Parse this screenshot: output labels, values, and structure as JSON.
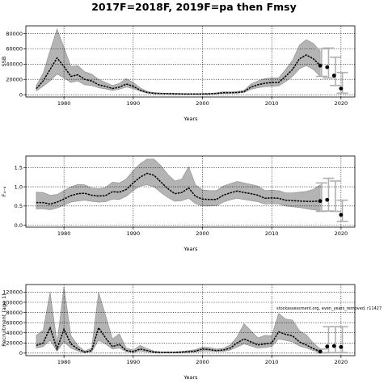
{
  "title": "2017F=2018F, 2019F=pa then Fmsy",
  "chart_data": [
    {
      "type": "line",
      "ylabel": "SSB",
      "xlabel": "Years",
      "xlim": [
        1974.5,
        2022
      ],
      "ylim": [
        -3000,
        90000
      ],
      "xticks": [
        1980,
        1990,
        2000,
        2010,
        2020
      ],
      "yticks": [
        0,
        20000,
        40000,
        60000,
        80000
      ],
      "grid": true,
      "x": [
        1976,
        1977,
        1978,
        1979,
        1980,
        1981,
        1982,
        1983,
        1984,
        1985,
        1986,
        1987,
        1988,
        1989,
        1990,
        1991,
        1992,
        1993,
        1994,
        1995,
        1996,
        1997,
        1998,
        1999,
        2000,
        2001,
        2002,
        2003,
        2004,
        2005,
        2006,
        2007,
        2008,
        2009,
        2010,
        2011,
        2012,
        2013,
        2014,
        2015,
        2016,
        2017
      ],
      "values": [
        8000,
        18000,
        33000,
        48000,
        37000,
        24000,
        26000,
        20000,
        18000,
        13000,
        11000,
        8000,
        10000,
        14000,
        11000,
        6000,
        3000,
        1800,
        1500,
        1400,
        1200,
        1000,
        900,
        900,
        1000,
        1200,
        1600,
        2500,
        2500,
        2800,
        4000,
        10000,
        13000,
        15000,
        16000,
        16000,
        24000,
        33000,
        47000,
        52000,
        47000,
        38000
      ],
      "lower": [
        5000,
        11000,
        18000,
        27000,
        22000,
        16000,
        18000,
        13000,
        12000,
        9000,
        7500,
        5500,
        7000,
        10000,
        8000,
        4500,
        2000,
        1200,
        1000,
        900,
        800,
        700,
        600,
        600,
        700,
        800,
        1100,
        1700,
        1800,
        2000,
        2800,
        7000,
        9000,
        10500,
        11000,
        11500,
        17000,
        24000,
        34000,
        38000,
        33000,
        24000
      ],
      "upper": [
        12000,
        28000,
        58000,
        86000,
        62000,
        37000,
        38000,
        30000,
        27000,
        20000,
        16000,
        12000,
        15000,
        21000,
        16000,
        9000,
        4500,
        2700,
        2200,
        2100,
        1800,
        1500,
        1300,
        1300,
        1500,
        1800,
        2400,
        3800,
        3700,
        4200,
        5800,
        14000,
        18000,
        21000,
        22000,
        22000,
        33000,
        45000,
        65000,
        72000,
        67000,
        57000
      ],
      "forecast_x": [
        2017,
        2018,
        2019,
        2020
      ],
      "forecast_values": [
        38000,
        36000,
        25000,
        8000
      ],
      "forecast_bars": [
        {
          "x": 2017.2,
          "lower": 24000,
          "upper": 60000
        },
        {
          "x": 2018.2,
          "lower": 22000,
          "upper": 61000
        },
        {
          "x": 2019.2,
          "lower": 12000,
          "upper": 49000
        },
        {
          "x": 2020.2,
          "lower": 2000,
          "upper": 29000
        }
      ]
    },
    {
      "type": "line",
      "ylabel": "F₄₋₈",
      "xlabel": "Years",
      "xlim": [
        1974.5,
        2022
      ],
      "ylim": [
        -0.05,
        1.8
      ],
      "xticks": [
        1980,
        1990,
        2000,
        2010,
        2020
      ],
      "yticks": [
        0.0,
        0.5,
        1.0,
        1.5
      ],
      "grid": true,
      "x": [
        1976,
        1977,
        1978,
        1979,
        1980,
        1981,
        1982,
        1983,
        1984,
        1985,
        1986,
        1987,
        1988,
        1989,
        1990,
        1991,
        1992,
        1993,
        1994,
        1995,
        1996,
        1997,
        1998,
        1999,
        2000,
        2001,
        2002,
        2003,
        2004,
        2005,
        2006,
        2007,
        2008,
        2009,
        2010,
        2011,
        2012,
        2013,
        2014,
        2015,
        2016,
        2017
      ],
      "values": [
        0.59,
        0.59,
        0.55,
        0.6,
        0.68,
        0.77,
        0.82,
        0.83,
        0.78,
        0.76,
        0.77,
        0.87,
        0.86,
        0.93,
        1.1,
        1.25,
        1.35,
        1.3,
        1.12,
        0.95,
        0.82,
        0.85,
        0.97,
        0.75,
        0.68,
        0.67,
        0.67,
        0.78,
        0.84,
        0.89,
        0.85,
        0.82,
        0.78,
        0.7,
        0.71,
        0.7,
        0.65,
        0.64,
        0.63,
        0.62,
        0.62,
        0.63
      ],
      "lower": [
        0.42,
        0.43,
        0.4,
        0.45,
        0.52,
        0.6,
        0.63,
        0.65,
        0.62,
        0.6,
        0.61,
        0.68,
        0.67,
        0.75,
        0.9,
        1.02,
        1.05,
        1.0,
        0.85,
        0.72,
        0.62,
        0.64,
        0.7,
        0.56,
        0.5,
        0.5,
        0.51,
        0.6,
        0.66,
        0.7,
        0.67,
        0.64,
        0.61,
        0.55,
        0.56,
        0.55,
        0.5,
        0.48,
        0.46,
        0.43,
        0.4,
        0.38
      ],
      "upper": [
        0.86,
        0.85,
        0.78,
        0.8,
        0.9,
        1.0,
        1.06,
        1.05,
        0.97,
        0.95,
        0.98,
        1.12,
        1.1,
        1.2,
        1.42,
        1.6,
        1.72,
        1.72,
        1.55,
        1.32,
        1.15,
        1.2,
        1.52,
        1.05,
        0.92,
        0.9,
        0.9,
        1.02,
        1.08,
        1.14,
        1.1,
        1.06,
        1.02,
        0.9,
        0.91,
        0.9,
        0.84,
        0.84,
        0.86,
        0.88,
        0.93,
        1.05
      ],
      "forecast_x": [
        2017,
        2018,
        2019,
        2020
      ],
      "forecast_values": [
        0.63,
        0.66,
        null,
        0.27
      ],
      "forecast_bars": [
        {
          "x": 2017.2,
          "lower": 0.36,
          "upper": 1.1
        },
        {
          "x": 2018.2,
          "lower": 0.37,
          "upper": 1.22
        },
        {
          "x": 2019.2,
          "lower": 0.36,
          "upper": 1.15
        },
        {
          "x": 2020.2,
          "lower": 0.1,
          "upper": 0.65
        }
      ]
    },
    {
      "type": "line",
      "ylabel": "Recruitment (age 1)",
      "xlabel": "Years",
      "xlim": [
        1974.5,
        2022
      ],
      "ylim": [
        -5000,
        135000
      ],
      "xticks": [
        1980,
        1990,
        2000,
        2010,
        2020
      ],
      "yticks": [
        0,
        20000,
        40000,
        60000,
        80000,
        100000,
        120000
      ],
      "grid": true,
      "annotation": "stockassessment.org, even_years_removed, r11427",
      "x": [
        1976,
        1977,
        1978,
        1979,
        1980,
        1981,
        1982,
        1983,
        1984,
        1985,
        1986,
        1987,
        1988,
        1989,
        1990,
        1991,
        1992,
        1993,
        1994,
        1995,
        1996,
        1997,
        1998,
        1999,
        2000,
        2001,
        2002,
        2003,
        2004,
        2005,
        2006,
        2007,
        2008,
        2009,
        2010,
        2011,
        2012,
        2013,
        2014,
        2015,
        2016,
        2017
      ],
      "values": [
        15000,
        20000,
        50000,
        8000,
        47000,
        18000,
        8000,
        2000,
        5000,
        50000,
        30000,
        13000,
        17000,
        5000,
        3000,
        8000,
        5000,
        2000,
        1500,
        1500,
        1500,
        2000,
        3000,
        4000,
        8000,
        7000,
        5000,
        6000,
        10000,
        20000,
        28000,
        22000,
        16000,
        18000,
        20000,
        42000,
        37000,
        34000,
        22000,
        16000,
        9000,
        3000
      ],
      "lower": [
        10000,
        13000,
        25000,
        4000,
        22000,
        10000,
        4000,
        1000,
        2500,
        25000,
        18000,
        8000,
        10000,
        3000,
        1500,
        4000,
        2500,
        1000,
        800,
        800,
        800,
        1000,
        1500,
        2000,
        4000,
        4000,
        3000,
        3500,
        6000,
        12000,
        18000,
        14000,
        10000,
        11000,
        13000,
        28000,
        25000,
        22000,
        14000,
        10000,
        5000,
        1500
      ],
      "upper": [
        35000,
        45000,
        120000,
        20000,
        130000,
        35000,
        15000,
        4000,
        10000,
        120000,
        75000,
        28000,
        38000,
        10000,
        6000,
        15000,
        9000,
        4000,
        2500,
        2500,
        2500,
        3500,
        5000,
        7000,
        12000,
        11000,
        8000,
        9500,
        16000,
        32000,
        58000,
        44000,
        30000,
        35000,
        34000,
        78000,
        67000,
        65000,
        44000,
        36000,
        20000,
        8000
      ],
      "forecast_x": [
        2017,
        2018,
        2019,
        2020
      ],
      "forecast_values": [
        3000,
        13000,
        14000,
        12000
      ],
      "forecast_bars": [
        {
          "x": 2017.2,
          "lower": 500,
          "upper": 8000
        },
        {
          "x": 2018.2,
          "lower": 1000,
          "upper": 52000
        },
        {
          "x": 2019.2,
          "lower": 1000,
          "upper": 52000
        },
        {
          "x": 2020.2,
          "lower": 1000,
          "upper": 52000
        }
      ]
    }
  ]
}
